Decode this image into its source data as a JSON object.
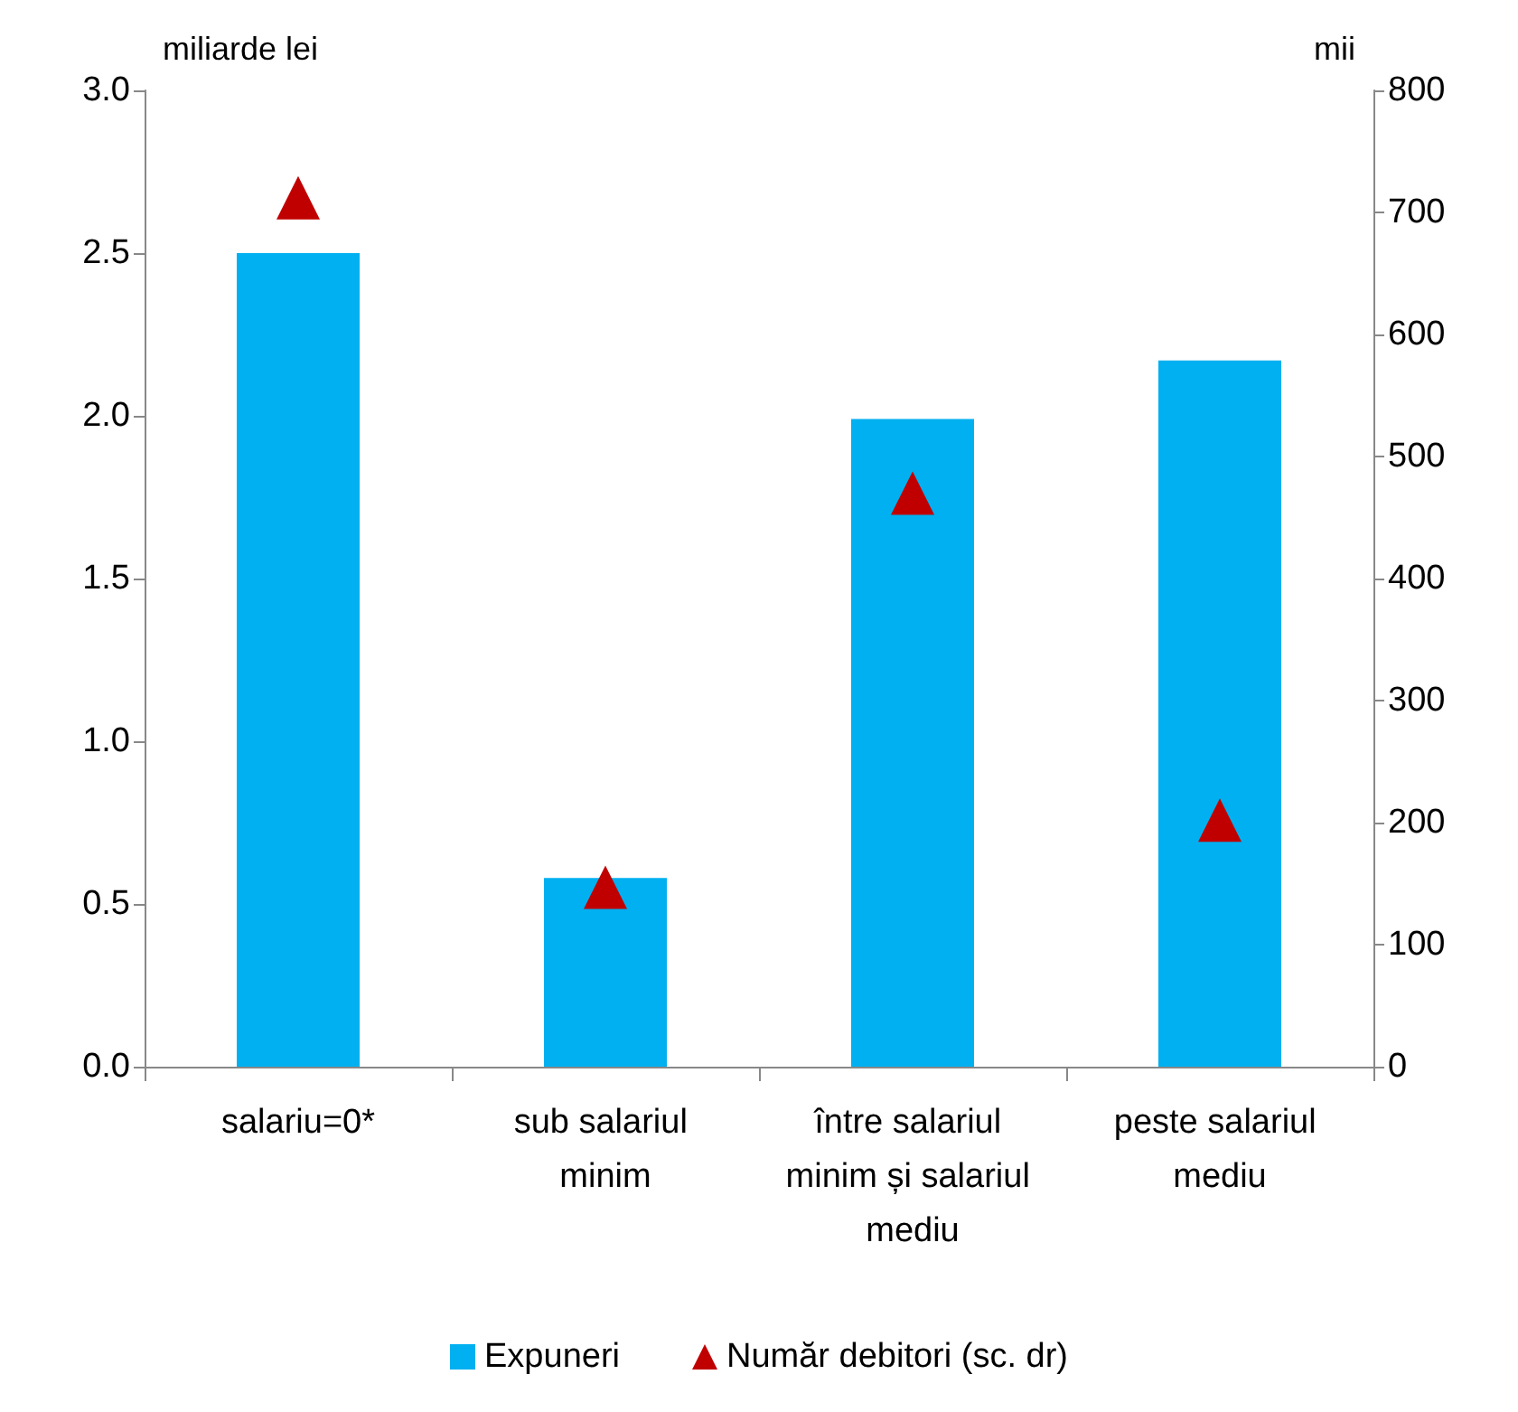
{
  "chart_data": {
    "type": "bar",
    "ylabel": "miliarde lei",
    "y2label": "mii",
    "categories": [
      "salariu=0*",
      "sub salariul minim",
      "între salariul minim și salariul mediu",
      "peste salariul mediu"
    ],
    "series": [
      {
        "name": "Expuneri",
        "color": "#00b0f0",
        "values": [
          2.5,
          0.58,
          1.99,
          2.17
        ]
      },
      {
        "name": "Număr debitori (sc. dr)",
        "type": "scatter",
        "axis": "y2",
        "marker": "triangle",
        "color": "#c00000",
        "values": [
          712,
          147,
          470,
          202
        ]
      }
    ],
    "ylim": [
      0,
      3
    ],
    "yticks": [
      {
        "value": 0,
        "label": "0.0"
      },
      {
        "value": 0.5,
        "label": "0.5"
      },
      {
        "value": 1,
        "label": "1.0"
      },
      {
        "value": 1.5,
        "label": "1.5"
      },
      {
        "value": 2,
        "label": "2.0"
      },
      {
        "value": 2.5,
        "label": "2.5"
      },
      {
        "value": 3,
        "label": "3.0"
      }
    ],
    "y2lim": [
      0,
      800
    ],
    "y2ticks": [
      0,
      100,
      200,
      300,
      400,
      500,
      600,
      700,
      800
    ],
    "grid": false,
    "legend": "bottom"
  }
}
